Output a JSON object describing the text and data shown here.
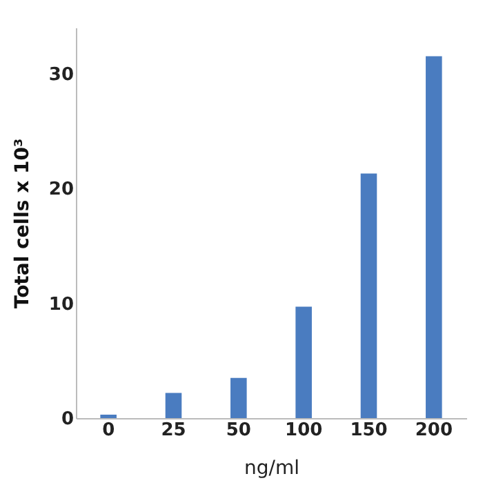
{
  "chart_data": {
    "type": "bar",
    "xlabel": "ng/ml",
    "ylabel": "Total cells x 10³",
    "categories": [
      "0",
      "25",
      "50",
      "100",
      "150",
      "200"
    ],
    "values": [
      0.3,
      2.2,
      3.5,
      9.7,
      21.3,
      31.5
    ],
    "color": "#4a7cc0",
    "ylim": [
      0,
      34
    ],
    "yticks": [
      0,
      10,
      20,
      30
    ],
    "grid": false
  }
}
